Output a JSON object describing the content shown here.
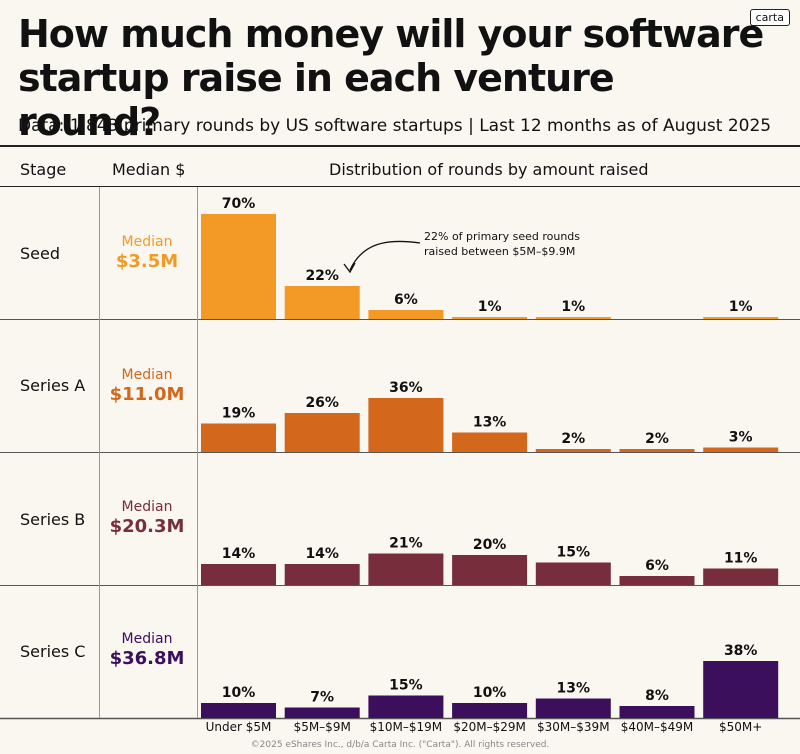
{
  "logo": "carta",
  "title": "How much money will your software startup raise in each venture round?",
  "subtitle": "Data: 1,843 primary rounds by US software startups | Last 12 months as of August 2025",
  "headers": {
    "stage": "Stage",
    "median": "Median $",
    "distribution": "Distribution of rounds by amount raised"
  },
  "annotation": {
    "line1": "22% of primary seed rounds",
    "line2": "raised between $5M–$9.9M"
  },
  "footer": "©2025 eShares Inc., d/b/a Carta Inc. (\"Carta\"). All rights reserved.",
  "colors": {
    "background": "#faf6f0",
    "seed": "#f29a25",
    "series_a": "#d3671b",
    "series_b": "#772d3c",
    "series_c": "#3c0f5c"
  },
  "rows": [
    {
      "stage": "Seed",
      "median_label": "Median",
      "median_value": "$3.5M",
      "color": "#f29a25"
    },
    {
      "stage": "Series A",
      "median_label": "Median",
      "median_value": "$11.0M",
      "color": "#d3671b"
    },
    {
      "stage": "Series B",
      "median_label": "Median",
      "median_value": "$20.3M",
      "color": "#772d3c"
    },
    {
      "stage": "Series C",
      "median_label": "Median",
      "median_value": "$36.8M",
      "color": "#3c0f5c"
    }
  ],
  "chart_data": {
    "type": "bar",
    "title": "How much money will your software startup raise in each venture round?",
    "xlabel": "Distribution of rounds by amount raised",
    "ylabel": "",
    "categories": [
      "Under $5M",
      "$5M–$9M",
      "$10M–$19M",
      "$20M–$29M",
      "$30M–$39M",
      "$40M–$49M",
      "$50M+"
    ],
    "value_unit": "%",
    "series": [
      {
        "name": "Seed",
        "values": [
          70,
          22,
          6,
          1,
          1,
          0,
          1
        ],
        "labels": [
          "70%",
          "22%",
          "6%",
          "1%",
          "1%",
          "",
          "1%"
        ]
      },
      {
        "name": "Series A",
        "values": [
          19,
          26,
          36,
          13,
          2,
          2,
          3
        ],
        "labels": [
          "19%",
          "26%",
          "36%",
          "13%",
          "2%",
          "2%",
          "3%"
        ]
      },
      {
        "name": "Series B",
        "values": [
          14,
          14,
          21,
          20,
          15,
          6,
          11
        ],
        "labels": [
          "14%",
          "14%",
          "21%",
          "20%",
          "15%",
          "6%",
          "11%"
        ]
      },
      {
        "name": "Series C",
        "values": [
          10,
          7,
          15,
          10,
          13,
          8,
          38
        ],
        "labels": [
          "10%",
          "7%",
          "15%",
          "10%",
          "13%",
          "8%",
          "38%"
        ]
      }
    ]
  }
}
